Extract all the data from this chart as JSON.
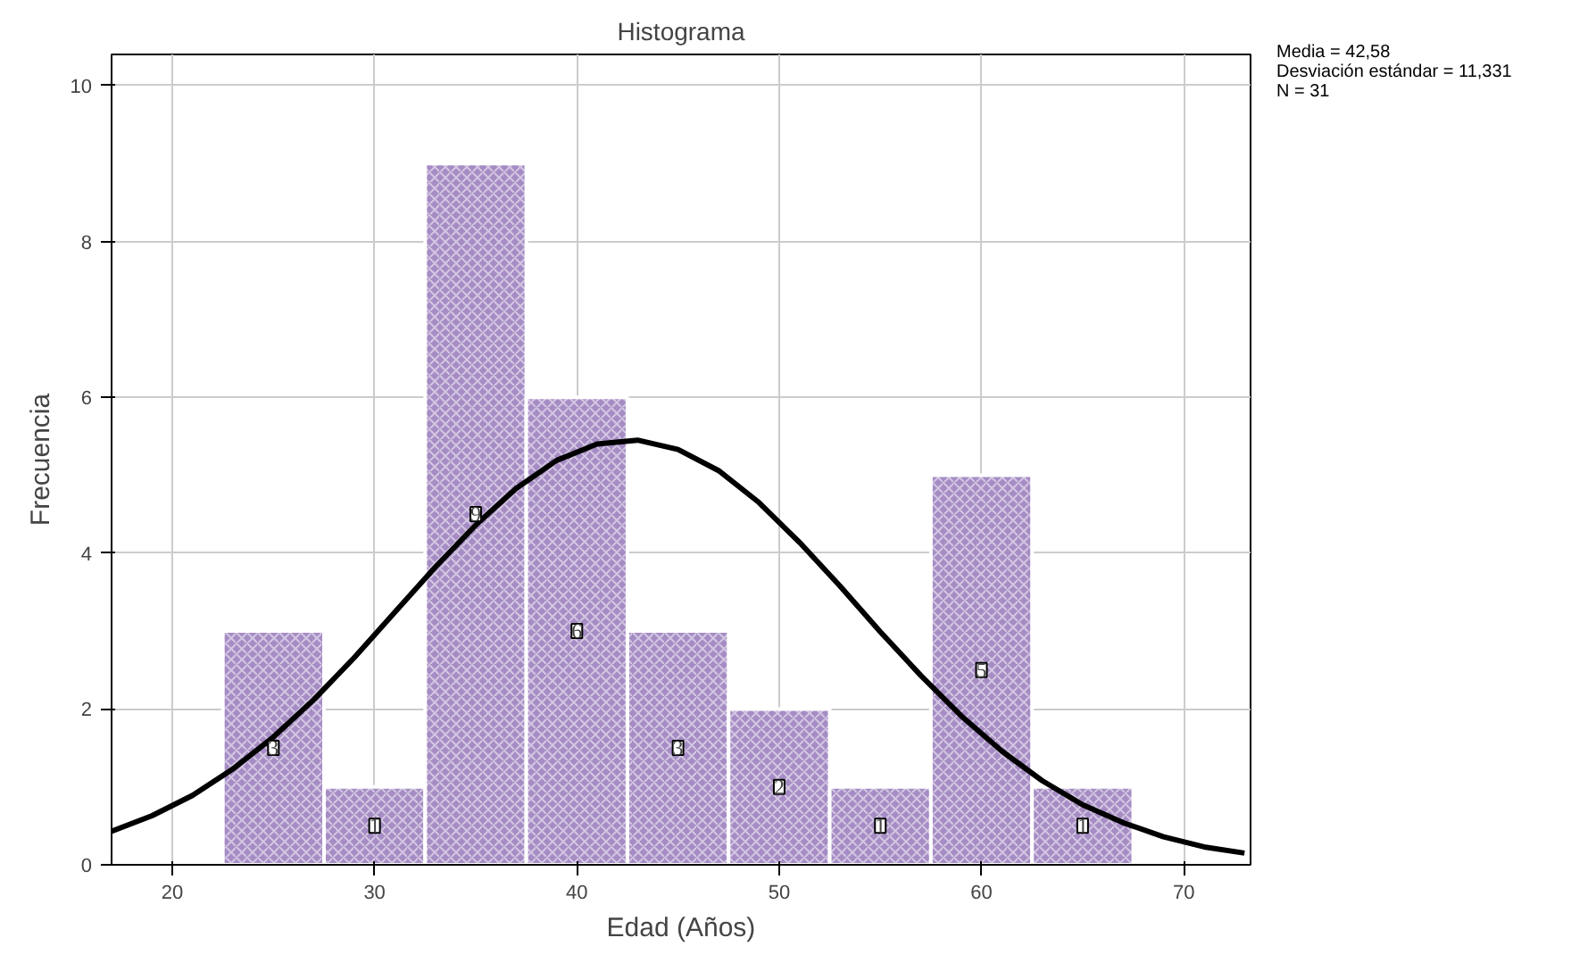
{
  "chart_data": {
    "type": "histogram",
    "title": "Histograma",
    "xlabel": "Edad (Años)",
    "ylabel": "Frecuencia",
    "bins": [
      22.5,
      27.5,
      32.5,
      37.5,
      42.5,
      47.5,
      52.5,
      57.5,
      62.5,
      67.5
    ],
    "values": [
      3,
      1,
      9,
      6,
      3,
      2,
      1,
      5,
      1
    ],
    "color": "#a68cc4",
    "value_labels": [
      "3",
      "1",
      "9",
      "6",
      "3",
      "2",
      "1",
      "5",
      "1"
    ],
    "series": [
      {
        "type": "line",
        "color": "#000000",
        "x": [
          17,
          19,
          21,
          23,
          25,
          27,
          29,
          31,
          33,
          35,
          37,
          39,
          41,
          43,
          45,
          47,
          49,
          51,
          53,
          55,
          57,
          59,
          61,
          63,
          65,
          67,
          69,
          71,
          73
        ],
        "values": [
          0.43,
          0.63,
          0.89,
          1.23,
          1.64,
          2.12,
          2.66,
          3.24,
          3.82,
          4.36,
          4.83,
          5.19,
          5.4,
          5.45,
          5.33,
          5.06,
          4.65,
          4.14,
          3.58,
          2.99,
          2.43,
          1.91,
          1.46,
          1.08,
          0.77,
          0.54,
          0.36,
          0.23,
          0.15
        ]
      }
    ],
    "xlim": [
      17,
      73.3
    ],
    "ylim": [
      0,
      10.4
    ],
    "xticks": [
      20,
      30,
      40,
      50,
      60,
      70
    ],
    "yticks": [
      0,
      2,
      4,
      6,
      8,
      10
    ],
    "grid": true,
    "annotations": [
      "Media = 42,58",
      "Desviación estándar = 11,331",
      "N = 31"
    ]
  }
}
